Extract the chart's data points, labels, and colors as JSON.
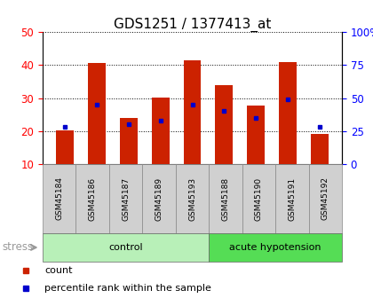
{
  "title": "GDS1251 / 1377413_at",
  "samples": [
    "GSM45184",
    "GSM45186",
    "GSM45187",
    "GSM45189",
    "GSM45193",
    "GSM45188",
    "GSM45190",
    "GSM45191",
    "GSM45192"
  ],
  "count_values": [
    20.2,
    40.5,
    24.0,
    30.2,
    41.5,
    33.8,
    27.8,
    41.0,
    19.0
  ],
  "percentile_values": [
    21.2,
    28.0,
    22.0,
    23.2,
    28.0,
    26.0,
    24.0,
    29.5,
    21.2
  ],
  "groups": [
    {
      "label": "control",
      "start": 0,
      "end": 5,
      "color": "#b8f0b8"
    },
    {
      "label": "acute hypotension",
      "start": 5,
      "end": 9,
      "color": "#55dd55"
    }
  ],
  "ylim_left": [
    10,
    50
  ],
  "ylim_right": [
    0,
    100
  ],
  "yticks_left": [
    10,
    20,
    30,
    40,
    50
  ],
  "yticks_right": [
    0,
    25,
    50,
    75,
    100
  ],
  "bar_color": "#cc2200",
  "percentile_color": "#0000cc",
  "bar_width": 0.55,
  "legend_items": [
    {
      "label": "count",
      "color": "#cc2200"
    },
    {
      "label": "percentile rank within the sample",
      "color": "#0000cc"
    }
  ],
  "stress_label": "stress",
  "stress_color": "#999999",
  "title_fontsize": 11,
  "tick_fontsize": 8.5,
  "sample_fontsize": 6.5,
  "group_fontsize": 8,
  "legend_fontsize": 8
}
